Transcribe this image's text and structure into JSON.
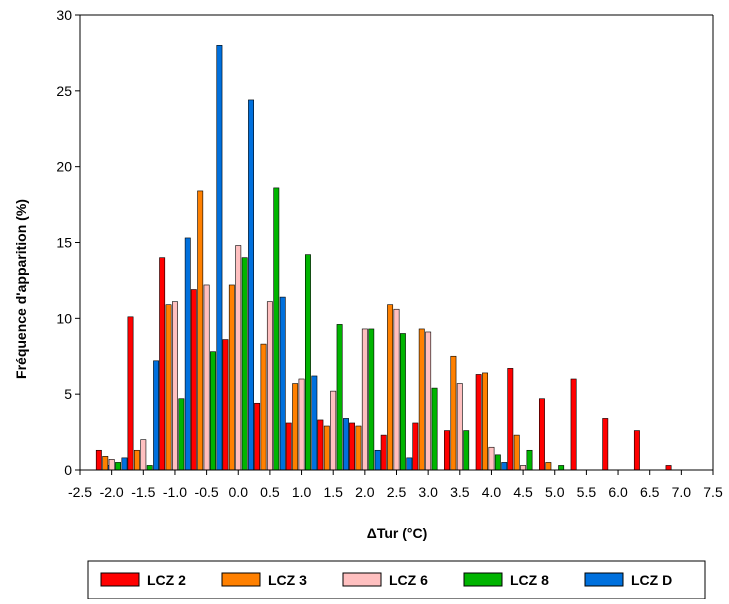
{
  "chart_data": {
    "type": "bar",
    "title": "",
    "xlabel": "ΔTur (°C)",
    "ylabel": "Fréquence d'apparition (%)",
    "ylim": [
      0,
      30
    ],
    "yticks": [
      "0",
      "5",
      "10",
      "15",
      "20",
      "25",
      "30"
    ],
    "xlim": [
      -2.5,
      7.5
    ],
    "xticks": [
      "-2.5",
      "-2.0",
      "-1.5",
      "-1.0",
      "-0.5",
      "0.0",
      "0.5",
      "1.0",
      "1.5",
      "2.0",
      "2.5",
      "3.0",
      "3.5",
      "4.0",
      "4.5",
      "5.0",
      "5.5",
      "6.0",
      "6.5",
      "7.0",
      "7.5"
    ],
    "legend_position": "bottom",
    "grid": false,
    "categories": [
      -2.25,
      -2.0,
      -1.5,
      -1.0,
      -0.5,
      0.0,
      0.5,
      1.0,
      1.5,
      2.0,
      2.5,
      3.0,
      3.5,
      4.0,
      4.5,
      5.0,
      5.5,
      6.0,
      6.5,
      7.0
    ],
    "series": [
      {
        "name": "LCZ 2",
        "color": "#ff0000",
        "values": [
          0,
          1.3,
          10.1,
          14.0,
          11.9,
          8.6,
          4.4,
          3.1,
          3.3,
          3.1,
          2.3,
          3.1,
          2.6,
          6.3,
          6.7,
          4.7,
          6.0,
          3.4,
          2.6,
          0.3
        ]
      },
      {
        "name": "LCZ 3",
        "color": "#ff8000",
        "values": [
          0,
          0.9,
          1.3,
          10.9,
          18.4,
          12.2,
          8.3,
          5.7,
          2.9,
          2.9,
          10.9,
          9.3,
          7.5,
          6.4,
          2.3,
          0.5,
          0,
          0,
          0,
          0
        ]
      },
      {
        "name": "LCZ 6",
        "color": "#ffc0c0",
        "values": [
          0,
          0.7,
          2.0,
          11.1,
          12.2,
          14.8,
          11.1,
          6.0,
          5.2,
          9.3,
          10.6,
          9.1,
          5.7,
          1.5,
          0.3,
          0,
          0,
          0,
          0,
          0
        ]
      },
      {
        "name": "LCZ 8",
        "color": "#00b400",
        "values": [
          0,
          0.5,
          0.3,
          4.7,
          7.8,
          14.0,
          18.6,
          14.2,
          9.6,
          9.3,
          9.0,
          5.4,
          2.6,
          1.0,
          1.3,
          0.3,
          0,
          0,
          0,
          0
        ]
      },
      {
        "name": "LCZ D",
        "color": "#0070dd",
        "values": [
          0.3,
          0.8,
          7.2,
          15.3,
          28.0,
          24.4,
          11.4,
          6.2,
          3.4,
          1.3,
          0.8,
          0,
          0,
          0.5,
          0,
          0,
          0,
          0,
          0,
          0
        ]
      }
    ]
  }
}
